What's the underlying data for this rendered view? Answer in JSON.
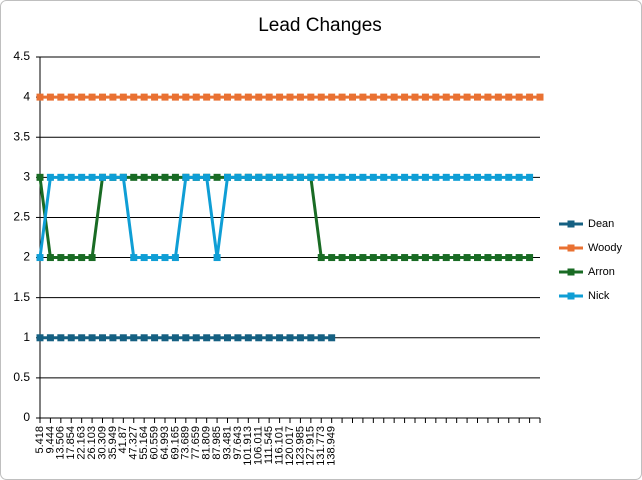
{
  "chart_data": {
    "type": "line",
    "title": "Lead Changes",
    "categories": [
      "5.418",
      "9.444",
      "13.506",
      "17.854",
      "22.163",
      "26.103",
      "30.309",
      "35.949",
      "41.87",
      "47.327",
      "55.164",
      "60.559",
      "64.993",
      "69.165",
      "73.689",
      "77.659",
      "81.809",
      "87.985",
      "93.481",
      "97.643",
      "101.913",
      "106.011",
      "111.545",
      "116.101",
      "120.017",
      "123.985",
      "127.915",
      "131.773",
      "138.949",
      null,
      null,
      null,
      null,
      null,
      null,
      null,
      null,
      null,
      null,
      null,
      null,
      null,
      null,
      null,
      null,
      null,
      null,
      null,
      null
    ],
    "series": [
      {
        "name": "Dean",
        "color": "#156082",
        "values": [
          1,
          1,
          1,
          1,
          1,
          1,
          1,
          1,
          1,
          1,
          1,
          1,
          1,
          1,
          1,
          1,
          1,
          1,
          1,
          1,
          1,
          1,
          1,
          1,
          1,
          1,
          1,
          1,
          1,
          null,
          null,
          null,
          null,
          null,
          null,
          null,
          null,
          null,
          null,
          null,
          null,
          null,
          null,
          null,
          null,
          null,
          null,
          null,
          null
        ]
      },
      {
        "name": "Woody",
        "color": "#E97132",
        "values": [
          4,
          4,
          4,
          4,
          4,
          4,
          4,
          4,
          4,
          4,
          4,
          4,
          4,
          4,
          4,
          4,
          4,
          4,
          4,
          4,
          4,
          4,
          4,
          4,
          4,
          4,
          4,
          4,
          4,
          4,
          4,
          4,
          4,
          4,
          4,
          4,
          4,
          4,
          4,
          4,
          4,
          4,
          4,
          4,
          4,
          4,
          4,
          4,
          4
        ]
      },
      {
        "name": "Arron",
        "color": "#196B24",
        "values": [
          3,
          2,
          2,
          2,
          2,
          2,
          3,
          3,
          3,
          3,
          3,
          3,
          3,
          3,
          3,
          3,
          3,
          3,
          3,
          3,
          3,
          3,
          3,
          3,
          3,
          3,
          3,
          2,
          2,
          2,
          2,
          2,
          2,
          2,
          2,
          2,
          2,
          2,
          2,
          2,
          2,
          2,
          2,
          2,
          2,
          2,
          2,
          2,
          null
        ]
      },
      {
        "name": "Nick",
        "color": "#0F9ED5",
        "values": [
          2,
          3,
          3,
          3,
          3,
          3,
          3,
          3,
          3,
          2,
          2,
          2,
          2,
          2,
          3,
          3,
          3,
          2,
          3,
          3,
          3,
          3,
          3,
          3,
          3,
          3,
          3,
          3,
          3,
          3,
          3,
          3,
          3,
          3,
          3,
          3,
          3,
          3,
          3,
          3,
          3,
          3,
          3,
          3,
          3,
          3,
          3,
          3,
          null
        ]
      }
    ],
    "ylim": [
      0,
      4.5
    ],
    "yticks": [
      0,
      0.5,
      1,
      1.5,
      2,
      2.5,
      3,
      3.5,
      4,
      4.5
    ],
    "grid": true,
    "legend": "right"
  }
}
